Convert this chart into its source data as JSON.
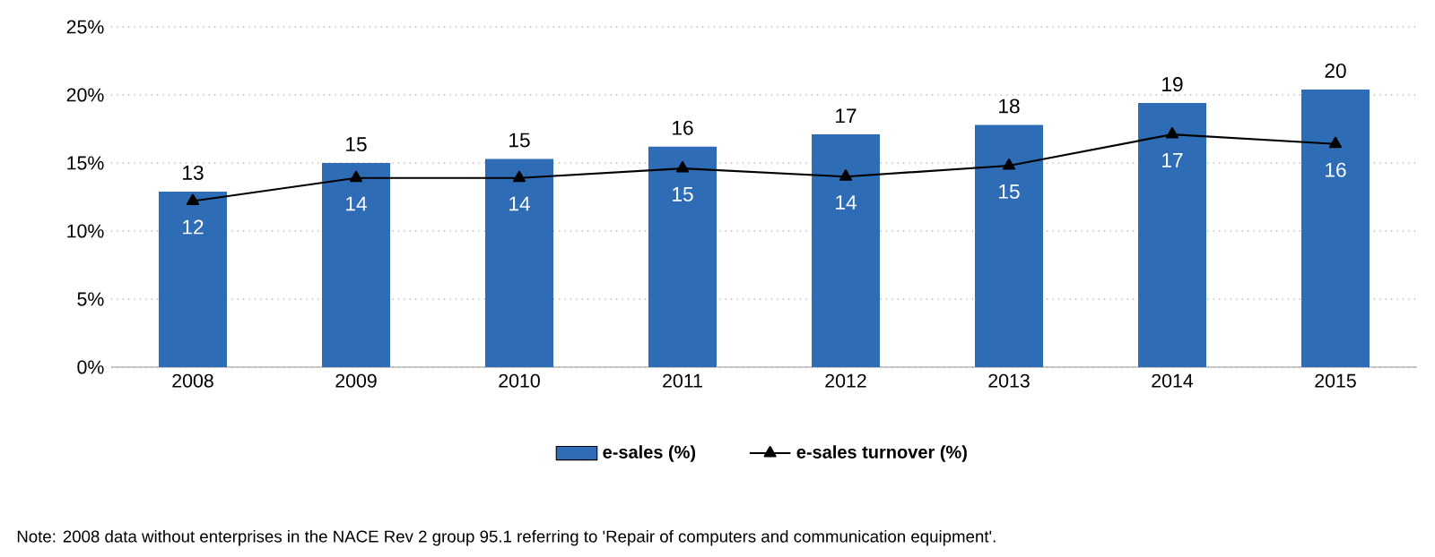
{
  "chart_data": {
    "type": "bar",
    "categories": [
      "2008",
      "2009",
      "2010",
      "2011",
      "2012",
      "2013",
      "2014",
      "2015"
    ],
    "series": [
      {
        "name": "e-sales (%)",
        "color": "#2e6db5",
        "values": [
          12.9,
          15.0,
          15.3,
          16.2,
          17.1,
          17.8,
          19.4,
          20.4
        ],
        "value_labels": [
          "13",
          "15",
          "15",
          "16",
          "17",
          "18",
          "19",
          "20"
        ]
      },
      {
        "name": "e-sales turnover (%)",
        "type": "line",
        "color": "#000000",
        "marker": "triangle",
        "line_style": "solid",
        "values": [
          12.2,
          13.9,
          13.9,
          14.6,
          14.0,
          14.8,
          17.1,
          16.4
        ],
        "value_labels": [
          "12",
          "14",
          "14",
          "15",
          "14",
          "15",
          "17",
          "16"
        ]
      }
    ],
    "ylim": [
      0,
      25
    ],
    "yticks": [
      {
        "value": 0,
        "label": "0%"
      },
      {
        "value": 5,
        "label": "5%"
      },
      {
        "value": 10,
        "label": "10%"
      },
      {
        "value": 15,
        "label": "15%"
      },
      {
        "value": 20,
        "label": "20%"
      },
      {
        "value": 25,
        "label": "25%"
      }
    ],
    "grid": "y",
    "legend": "bottom",
    "annotations": [
      "Note: 2008 data without enterprises in the NACE Rev 2 group 95.1 referring to 'Repair of computers and communication equipment'."
    ]
  }
}
